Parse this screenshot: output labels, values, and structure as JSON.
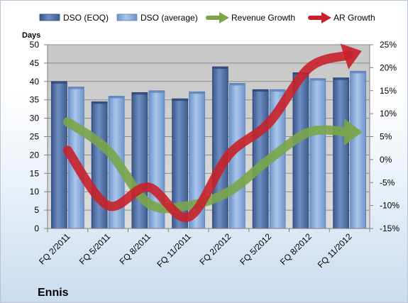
{
  "chart_data": {
    "type": "bar",
    "title": "",
    "company_label": "Ennis",
    "left_axis": {
      "title": "Days",
      "min": 0,
      "max": 50,
      "step": 5
    },
    "right_axis": {
      "title": "",
      "min": -15,
      "max": 25,
      "step": 5,
      "unit": "%"
    },
    "categories": [
      "FQ 2/2011",
      "FQ 5/2011",
      "FQ 8/2011",
      "FQ 11/2011",
      "FQ 2/2012",
      "FQ 5/2012",
      "FQ 8/2012",
      "FQ 11/2012"
    ],
    "grid": "horizontal",
    "legend_position": "top",
    "series": [
      {
        "name": "DSO (EOQ)",
        "kind": "bar",
        "axis": "left",
        "color": "#4f6fa6",
        "values": [
          40.0,
          34.5,
          37.0,
          35.3,
          44.0,
          37.8,
          42.4,
          41.0
        ]
      },
      {
        "name": "DSO (average)",
        "kind": "bar",
        "axis": "left",
        "color": "#8fb0df",
        "values": [
          38.5,
          36.0,
          37.5,
          37.2,
          39.5,
          37.8,
          40.8,
          42.8
        ]
      },
      {
        "name": "Revenue Growth",
        "kind": "arrow-line",
        "axis": "right",
        "color": "#7aa54a",
        "values": [
          8.2,
          2.0,
          -9.5,
          -10.0,
          -7.0,
          0.0,
          6.0,
          6.0
        ]
      },
      {
        "name": "AR Growth",
        "kind": "arrow-line",
        "axis": "right",
        "color": "#c8212a",
        "values": [
          2.0,
          -10.0,
          -6.0,
          -12.5,
          1.0,
          8.0,
          20.0,
          22.8
        ]
      }
    ]
  }
}
